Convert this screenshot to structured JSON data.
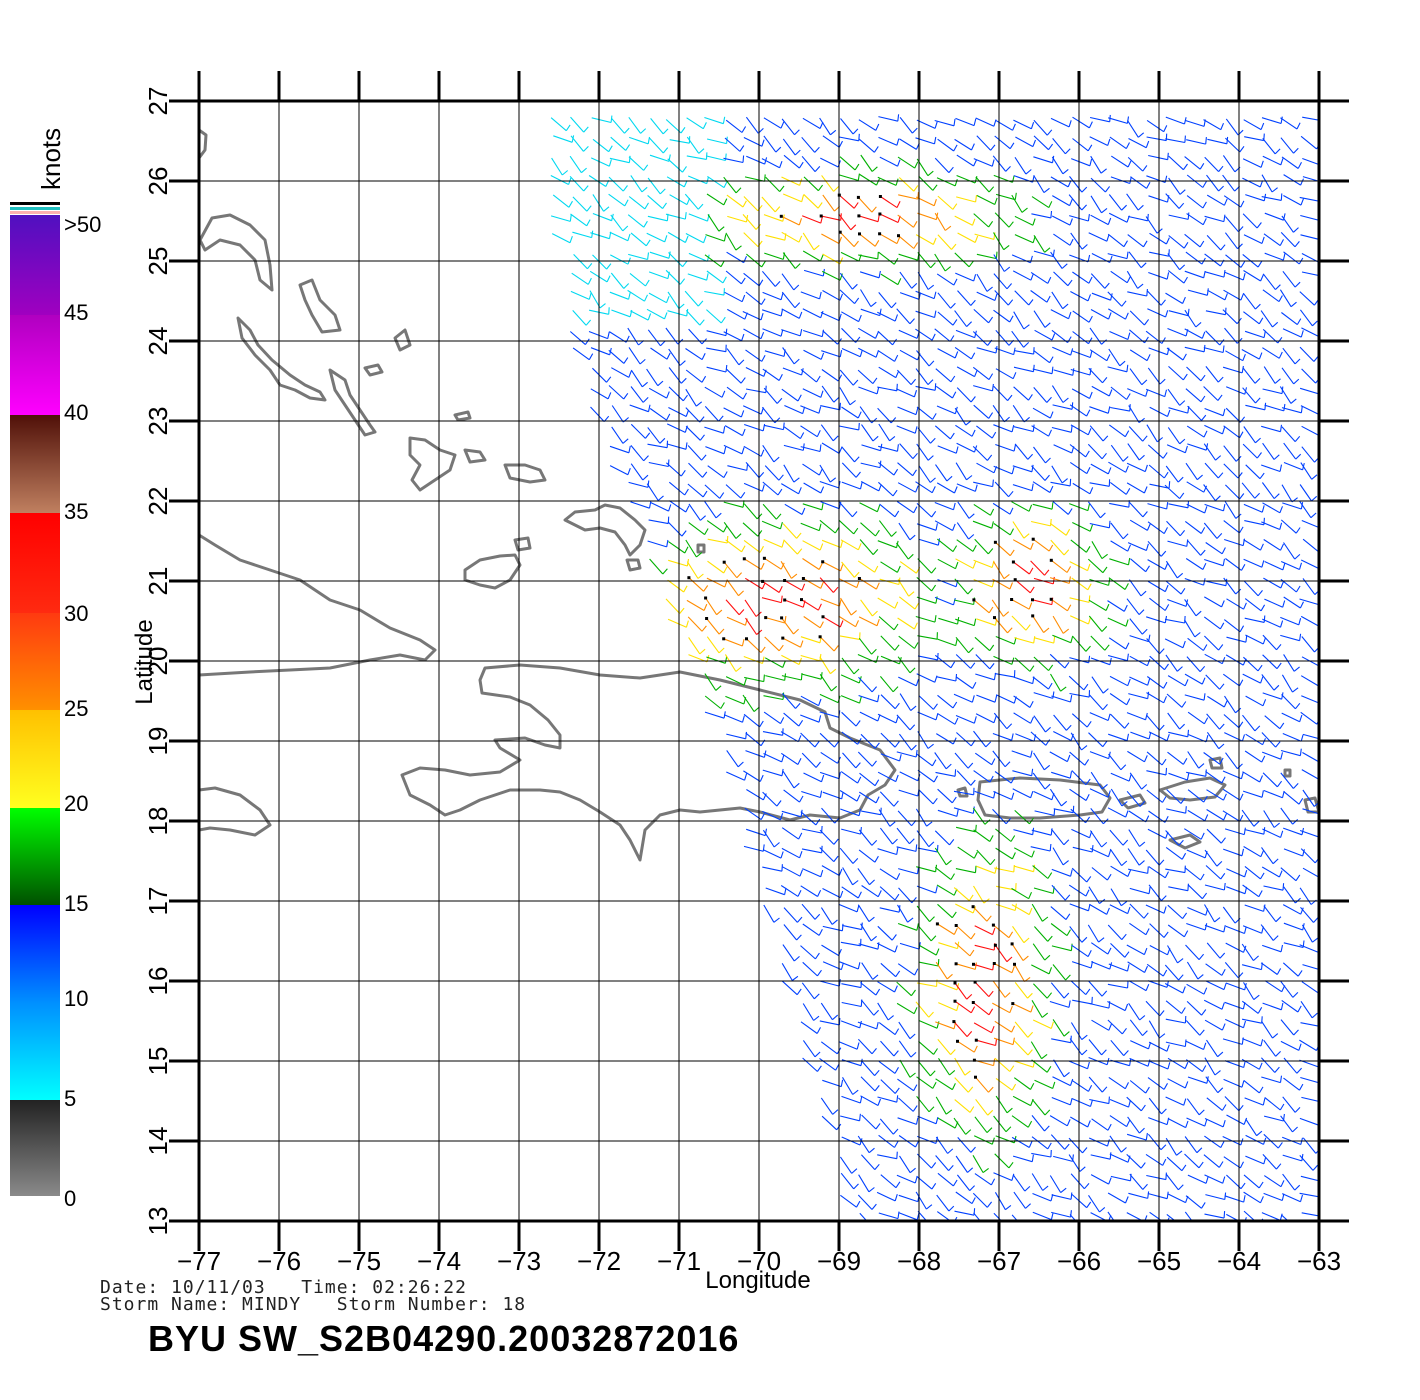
{
  "legend": {
    "unit_label": "knots",
    "tick_labels": [
      "0",
      "5",
      "10",
      "15",
      "20",
      "25",
      "30",
      "35",
      "40",
      "45",
      ">50"
    ]
  },
  "axes": {
    "x_label": "Longitude",
    "y_label": "Latitude",
    "x_ticks": [
      "-77",
      "-76",
      "-75",
      "-74",
      "-73",
      "-72",
      "-71",
      "-70",
      "-69",
      "-68",
      "-67",
      "-66",
      "-65",
      "-64",
      "-63"
    ],
    "y_ticks": [
      "13",
      "14",
      "15",
      "16",
      "17",
      "18",
      "19",
      "20",
      "21",
      "22",
      "23",
      "24",
      "25",
      "26",
      "27"
    ]
  },
  "footer": {
    "line1": "Date: 10/11/03   Time: 02:26:22",
    "line2": "Storm Name: MINDY   Storm Number: 18",
    "product_id": "BYU  SW_S2B04290.20032872016"
  },
  "map": {
    "lon_range": [
      -77,
      -63
    ],
    "lat_range": [
      13,
      27
    ],
    "coastline_color": "#777777",
    "grid_color": "#000000"
  },
  "colors": {
    "speed_0_5": "#555555",
    "speed_5_10": "#00d8f0",
    "speed_10_15": "#0040ff",
    "speed_15_20": "#00b000",
    "speed_20_25": "#ffe000",
    "speed_25_30": "#ff8c00",
    "speed_30_35": "#ff1010",
    "speed_35_40": "#8a4a2a",
    "speed_40_50": "#d000d0",
    "speed_gt_50": "#5500bb"
  }
}
